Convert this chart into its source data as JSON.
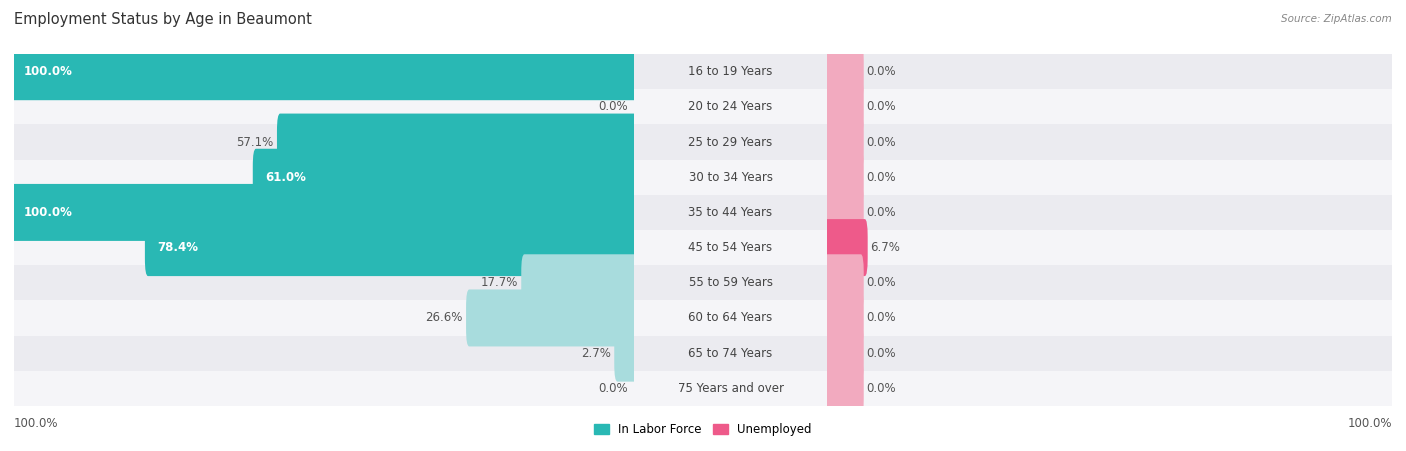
{
  "title": "Employment Status by Age in Beaumont",
  "source": "Source: ZipAtlas.com",
  "categories": [
    "16 to 19 Years",
    "20 to 24 Years",
    "25 to 29 Years",
    "30 to 34 Years",
    "35 to 44 Years",
    "45 to 54 Years",
    "55 to 59 Years",
    "60 to 64 Years",
    "65 to 74 Years",
    "75 Years and over"
  ],
  "labor_force": [
    100.0,
    0.0,
    57.1,
    61.0,
    100.0,
    78.4,
    17.7,
    26.6,
    2.7,
    0.0
  ],
  "unemployed": [
    0.0,
    0.0,
    0.0,
    0.0,
    0.0,
    6.7,
    0.0,
    0.0,
    0.0,
    0.0
  ],
  "labor_force_color_dark": "#29B8B4",
  "labor_force_color_light": "#A8DCDD",
  "unemployed_color_dark": "#EE5A8A",
  "unemployed_color_light": "#F2AABF",
  "row_colors": [
    "#EBEBF0",
    "#F5F5F8"
  ],
  "bar_height": 0.62,
  "lf_max": 100.0,
  "unemp_max": 100.0,
  "label_fontsize": 8.5,
  "value_fontsize": 8.5,
  "title_fontsize": 10.5,
  "source_fontsize": 7.5,
  "legend_fontsize": 8.5,
  "placeholder_pct": 6.0
}
